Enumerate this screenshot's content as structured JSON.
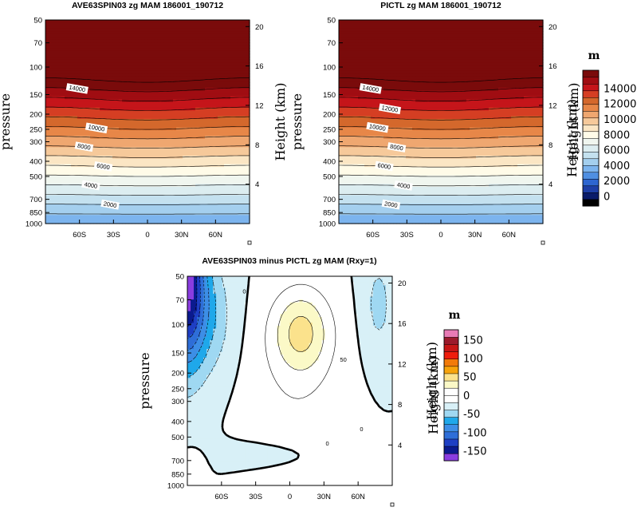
{
  "chart_data": [
    {
      "type": "contour",
      "title": "AVE63SPIN03 zg MAM 186001_190712",
      "ylabel": "pressure",
      "ylabel_right": "Height (km)",
      "x_ticks": [
        "60S",
        "30S",
        "0",
        "30N",
        "60N"
      ],
      "x_tick_values": [
        -60,
        -30,
        0,
        30,
        60
      ],
      "xlim": [
        -90,
        90
      ],
      "y_ticks": [
        "50",
        "70",
        "100",
        "150",
        "200",
        "250",
        "300",
        "400",
        "500",
        "700",
        "850",
        "1000"
      ],
      "y_tick_values": [
        50,
        70,
        100,
        150,
        200,
        250,
        300,
        400,
        500,
        700,
        850,
        1000
      ],
      "ylim": [
        1000,
        50
      ],
      "y_scale": "log-pressure",
      "right_ticks": [
        "4",
        "8",
        "12",
        "16",
        "20"
      ],
      "contour_labels": [
        "14000",
        "10000",
        "8000",
        "6000",
        "4000",
        "2000"
      ],
      "contour_interval": 1000
    },
    {
      "type": "contour",
      "title": "PICTL zg MAM 186001_190712",
      "ylabel": "pressure",
      "ylabel_right": "Height (km)",
      "x_ticks": [
        "60S",
        "30S",
        "0",
        "30N",
        "60N"
      ],
      "x_tick_values": [
        -60,
        -30,
        0,
        30,
        60
      ],
      "xlim": [
        -90,
        90
      ],
      "y_ticks": [
        "50",
        "70",
        "100",
        "150",
        "200",
        "250",
        "300",
        "400",
        "500",
        "700",
        "850",
        "1000"
      ],
      "y_tick_values": [
        50,
        70,
        100,
        150,
        200,
        250,
        300,
        400,
        500,
        700,
        850,
        1000
      ],
      "ylim": [
        1000,
        50
      ],
      "y_scale": "log-pressure",
      "right_ticks": [
        "4",
        "8",
        "12",
        "16",
        "20"
      ],
      "contour_labels": [
        "14000",
        "12000",
        "10000",
        "8000",
        "6000",
        "4000",
        "2000"
      ],
      "contour_interval": 1000,
      "colorbar": {
        "unit": "m",
        "labels": [
          "0",
          "2000",
          "4000",
          "6000",
          "8000",
          "10000",
          "12000",
          "14000"
        ],
        "colors": [
          "#000000",
          "#0a1c6a",
          "#1e3fa6",
          "#2e66d0",
          "#4f8fe2",
          "#7cb4ee",
          "#a4cfee",
          "#c4e1ef",
          "#dcedf0",
          "#f0f6ef",
          "#fffbe8",
          "#fbe6c4",
          "#f6c99a",
          "#efa770",
          "#e78748",
          "#d4682c",
          "#d53e23",
          "#c5151a",
          "#a00d12",
          "#7a0b0b"
        ]
      }
    },
    {
      "type": "contour",
      "title": "AVE63SPIN03 minus PICTL zg MAM (Rxy=1)",
      "ylabel": "pressure",
      "ylabel_right": "Height (km)",
      "x_ticks": [
        "60S",
        "30S",
        "0",
        "30N",
        "60N"
      ],
      "x_tick_values": [
        -60,
        -30,
        0,
        30,
        60
      ],
      "xlim": [
        -90,
        90
      ],
      "y_ticks": [
        "50",
        "70",
        "100",
        "150",
        "200",
        "250",
        "300",
        "400",
        "500",
        "700",
        "850",
        "1000"
      ],
      "y_tick_values": [
        50,
        70,
        100,
        150,
        200,
        250,
        300,
        400,
        500,
        700,
        850,
        1000
      ],
      "ylim": [
        1000,
        50
      ],
      "y_scale": "log-pressure",
      "right_ticks": [
        "4",
        "8",
        "12",
        "16",
        "20"
      ],
      "contour_labels": [
        "0",
        "50",
        "0",
        "0"
      ],
      "contour_interval": 25,
      "colorbar": {
        "unit": "m",
        "labels": [
          "-150",
          "-100",
          "-50",
          "0",
          "50",
          "100",
          "150"
        ],
        "colors": [
          "#8a3de0",
          "#0b1a8f",
          "#1e3fc4",
          "#2e6ed8",
          "#3d8ee6",
          "#1fa8ea",
          "#9fd8f2",
          "#d8f0f7",
          "#ffffff",
          "#ffffff",
          "#fbf9c7",
          "#fbe28c",
          "#f7a30b",
          "#f27a0a",
          "#ef1d0c",
          "#c61616",
          "#9b1a2c",
          "#e87ab5"
        ]
      }
    }
  ]
}
